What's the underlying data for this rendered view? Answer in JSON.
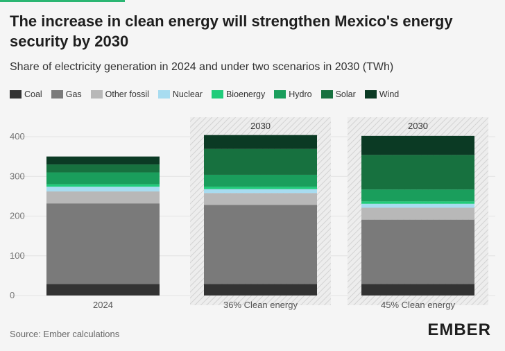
{
  "title": "The increase in clean energy will strengthen Mexico's energy security by 2030",
  "subtitle": "Share of electricity generation in 2024 and under two scenarios in 2030 (TWh)",
  "source": "Source: Ember calculations",
  "logo": "EMBER",
  "colors": {
    "Coal": "#333333",
    "Gas": "#7a7a7a",
    "Other fossil": "#b8b8b8",
    "Nuclear": "#a8dcf0",
    "Bioenergy": "#1fcc7a",
    "Hydro": "#1a9e5c",
    "Solar": "#17713f",
    "Wind": "#0b3a24"
  },
  "chart_data": {
    "type": "bar",
    "stacked": true,
    "categories": [
      "2024",
      "36% Clean energy",
      "45% Clean energy"
    ],
    "panel_labels": [
      "",
      "2030",
      "2030"
    ],
    "ylim": [
      0,
      400
    ],
    "yticks": [
      0,
      100,
      200,
      300,
      400
    ],
    "xlabel": "",
    "ylabel": "",
    "legend_position": "top",
    "series": [
      {
        "name": "Coal",
        "values": [
          29,
          29,
          29
        ]
      },
      {
        "name": "Gas",
        "values": [
          203,
          199,
          162
        ]
      },
      {
        "name": "Other fossil",
        "values": [
          30,
          30,
          30
        ]
      },
      {
        "name": "Nuclear",
        "values": [
          12,
          10,
          10
        ]
      },
      {
        "name": "Bioenergy",
        "values": [
          6,
          6,
          6
        ]
      },
      {
        "name": "Hydro",
        "values": [
          30,
          30,
          30
        ]
      },
      {
        "name": "Solar",
        "values": [
          20,
          65,
          87
        ]
      },
      {
        "name": "Wind",
        "values": [
          20,
          35,
          48
        ]
      }
    ]
  }
}
